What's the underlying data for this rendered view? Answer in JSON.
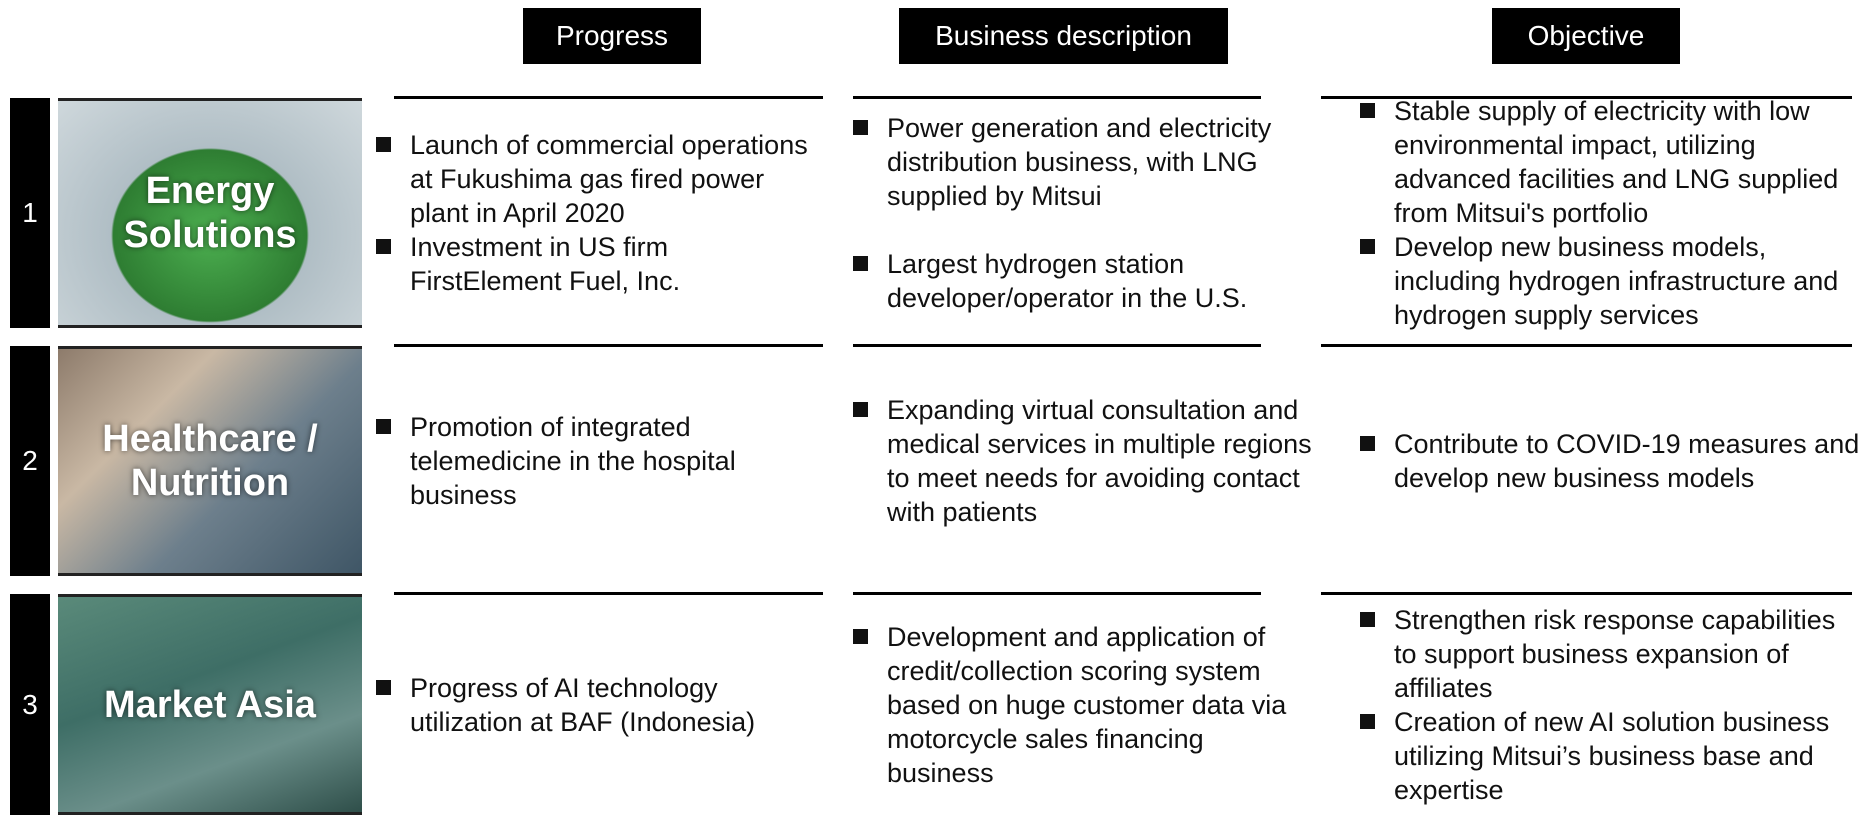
{
  "header": {
    "columns": [
      "Progress",
      "Business description",
      "Objective"
    ]
  },
  "rows": [
    {
      "number": "1",
      "label": "Energy Solutions",
      "progress": [
        "Launch of commercial operations at Fukushima gas fired power plant in April 2020",
        "Investment in US firm FirstElement Fuel, Inc."
      ],
      "business": [
        "Power generation and electricity distribution business, with LNG supplied by Mitsui",
        "Largest hydrogen station developer/operator in the U.S."
      ],
      "objective": [
        "Stable supply of electricity with low environmental impact, utilizing advanced facilities and LNG supplied from Mitsui's portfolio",
        "Develop new business models, including hydrogen infrastructure and hydrogen supply services"
      ]
    },
    {
      "number": "2",
      "label": "Healthcare / Nutrition",
      "progress": [
        "Promotion of integrated telemedicine in the hospital business"
      ],
      "business": [
        "Expanding virtual consultation and medical services in multiple regions to meet needs for avoiding contact with patients"
      ],
      "objective": [
        "Contribute to COVID-19 measures and develop new business models"
      ]
    },
    {
      "number": "3",
      "label": "Market Asia",
      "progress": [
        "Progress of AI technology utilization at BAF (Indonesia)"
      ],
      "business": [
        "Development and application of credit/collection scoring system based on huge customer data via motorcycle sales financing business"
      ],
      "objective": [
        "Strengthen risk response capabilities to support business expansion of affiliates",
        "Creation of new AI solution business utilizing Mitsui’s business base and expertise"
      ]
    }
  ]
}
